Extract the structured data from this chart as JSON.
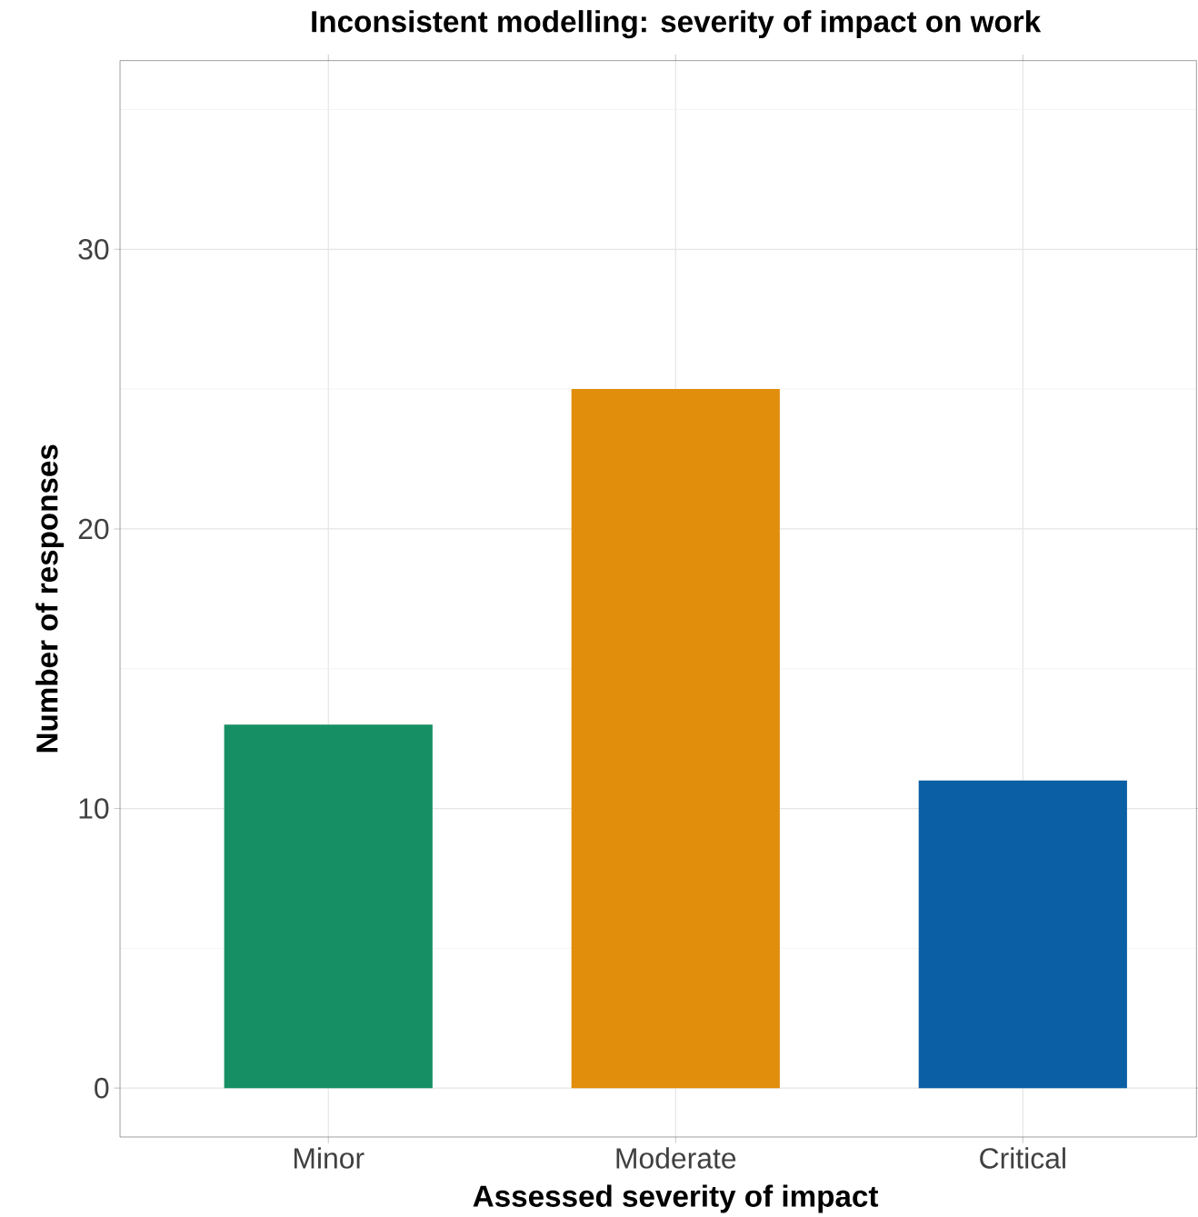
{
  "chart_data": {
    "type": "bar",
    "title": "Inconsistent modelling: severity of impact on work",
    "xlabel": "Assessed severity of impact",
    "ylabel": "Number of responses",
    "categories": [
      "Minor",
      "Moderate",
      "Critical"
    ],
    "values": [
      13,
      25,
      11
    ],
    "colors": [
      "#178f64",
      "#e08e0b",
      "#0b5fa5"
    ],
    "ylim": [
      -1.75,
      36.75
    ],
    "yticks": [
      0,
      10,
      20,
      30
    ],
    "grid": true
  }
}
